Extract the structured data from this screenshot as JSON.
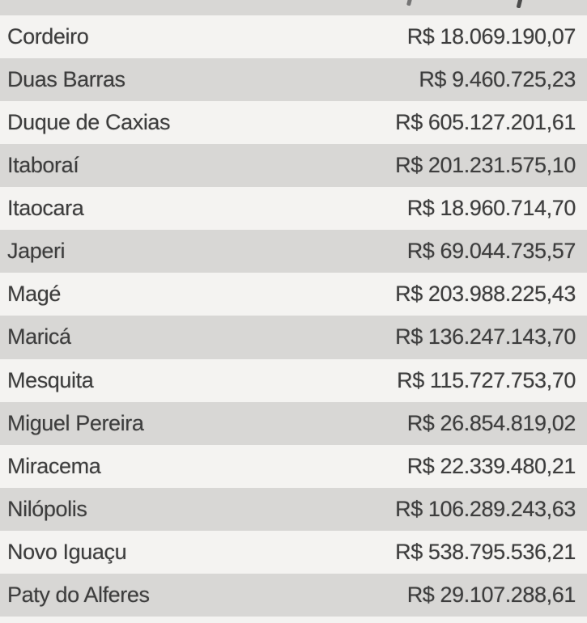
{
  "colors": {
    "row_light": "#f4f3f1",
    "row_dark": "#d8d7d5",
    "text": "#3d3d3d"
  },
  "table": {
    "columns": [
      "municipality",
      "value"
    ],
    "currency": "R$",
    "rows": [
      {
        "municipality": "Cordeiro",
        "value": "R$ 18.069.190,07"
      },
      {
        "municipality": "Duas Barras",
        "value": "R$ 9.460.725,23"
      },
      {
        "municipality": "Duque de Caxias",
        "value": "R$ 605.127.201,61"
      },
      {
        "municipality": "Itaboraí",
        "value": "R$ 201.231.575,10"
      },
      {
        "municipality": "Itaocara",
        "value": "R$ 18.960.714,70"
      },
      {
        "municipality": "Japeri",
        "value": "R$ 69.044.735,57"
      },
      {
        "municipality": "Magé",
        "value": "R$ 203.988.225,43"
      },
      {
        "municipality": "Maricá",
        "value": "R$ 136.247.143,70"
      },
      {
        "municipality": "Mesquita",
        "value": "R$ 115.727.753,70"
      },
      {
        "municipality": "Miguel Pereira",
        "value": "R$ 26.854.819,02"
      },
      {
        "municipality": "Miracema",
        "value": "R$ 22.339.480,21"
      },
      {
        "municipality": "Nilópolis",
        "value": "R$ 106.289.243,63"
      },
      {
        "municipality": "Novo Iguaçu",
        "value": "R$ 538.795.536,21"
      },
      {
        "municipality": "Paty do Alferes",
        "value": "R$ 29.107.288,61"
      }
    ]
  }
}
